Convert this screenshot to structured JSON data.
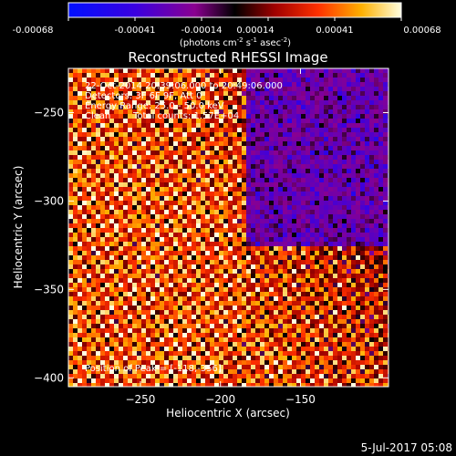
{
  "chart_data": {
    "type": "heatmap",
    "title": "Reconstructed RHESSI Image",
    "xlabel": "Heliocentric X (arcsec)",
    "ylabel": "Heliocentric Y (arcsec)",
    "xlim": [
      -295,
      -95
    ],
    "ylim": [
      -405,
      -225
    ],
    "xticks": [
      -250,
      -200,
      -150
    ],
    "yticks": [
      -250,
      -300,
      -350,
      -400
    ],
    "colorbar": {
      "ticks": [
        "-0.00068",
        "-0.00041",
        "-0.00014",
        "0.00014",
        "0.00041",
        "0.00068"
      ],
      "unit_parts": [
        "(photons cm",
        "-2",
        " s",
        "-1",
        " asec",
        "-2",
        ")"
      ]
    },
    "annotations": {
      "time_range": "22-Oct-2014 20:39:06.000 to 20:49:06.000",
      "detectors": "Detectors: 3F 6F 9F, Att 0",
      "energy": "Energy Range: 25.0 - 50.0 keV",
      "clean_label": "Clean",
      "counts": "Total counts: 1.57E+04",
      "peak": "Position of Peak = [-118,-356]"
    },
    "peak_position": [
      -118,
      -356
    ]
  },
  "footer": {
    "date": "5-Jul-2017 05:08"
  }
}
